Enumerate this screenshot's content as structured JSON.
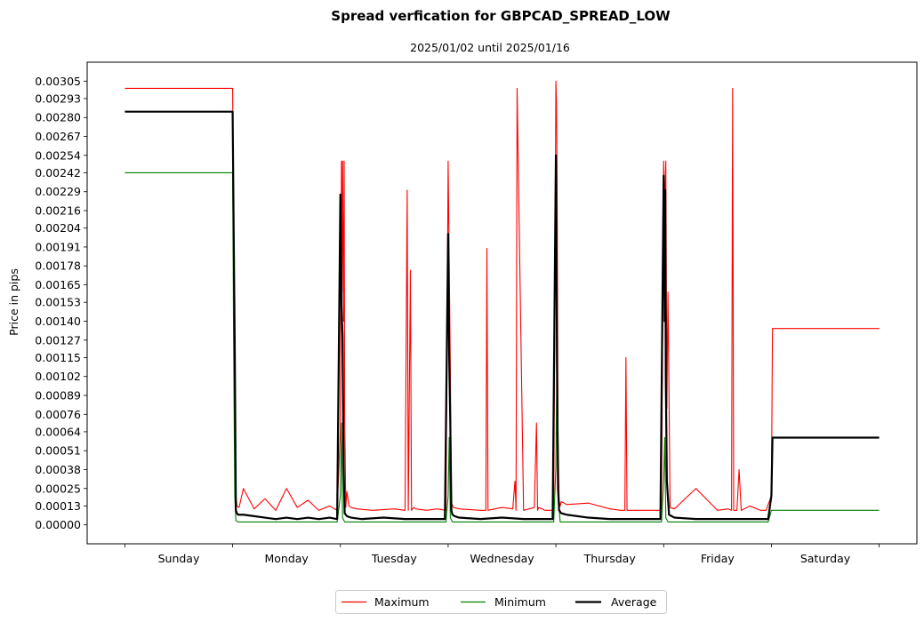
{
  "chart_data": {
    "type": "line",
    "title": "Spread verfication for GBPCAD_SPREAD_LOW",
    "subtitle": "2025/01/02 until 2025/01/16",
    "xlabel": "",
    "ylabel": "Price in pips",
    "categories": [
      "Sunday",
      "Monday",
      "Tuesday",
      "Wednesday",
      "Thursday",
      "Friday",
      "Saturday"
    ],
    "xlim": [
      -0.35,
      7.35
    ],
    "ylim": [
      -0.00013,
      0.00318
    ],
    "y_ticks": [
      "0.00000",
      "0.00013",
      "0.00025",
      "0.00038",
      "0.00051",
      "0.00064",
      "0.00076",
      "0.00089",
      "0.00102",
      "0.00115",
      "0.00127",
      "0.00140",
      "0.00153",
      "0.00165",
      "0.00178",
      "0.00191",
      "0.00204",
      "0.00216",
      "0.00229",
      "0.00242",
      "0.00254",
      "0.00267",
      "0.00280",
      "0.00293",
      "0.00305"
    ],
    "grid": false,
    "legend": "bottom-center",
    "series": [
      {
        "name": "Maximum",
        "color": "#ff0000",
        "x": [
          0.0,
          1.0,
          1.01,
          1.02,
          1.03,
          1.04,
          1.06,
          1.1,
          1.2,
          1.3,
          1.4,
          1.5,
          1.6,
          1.7,
          1.8,
          1.9,
          1.97,
          2.0,
          2.01,
          2.015,
          2.02,
          2.03,
          2.035,
          2.04,
          2.05,
          2.06,
          2.08,
          2.1,
          2.15,
          2.3,
          2.5,
          2.6,
          2.62,
          2.63,
          2.65,
          2.66,
          2.68,
          2.7,
          2.8,
          2.9,
          2.98,
          3.0,
          3.01,
          3.02,
          3.03,
          3.05,
          3.1,
          3.3,
          3.35,
          3.36,
          3.37,
          3.5,
          3.6,
          3.62,
          3.63,
          3.64,
          3.7,
          3.8,
          3.82,
          3.83,
          3.84,
          3.9,
          3.98,
          4.0,
          4.005,
          4.01,
          4.02,
          4.03,
          4.04,
          4.05,
          4.1,
          4.3,
          4.5,
          4.6,
          4.64,
          4.65,
          4.66,
          4.7,
          4.9,
          4.98,
          5.0,
          5.01,
          5.02,
          5.03,
          5.04,
          5.06,
          5.1,
          5.3,
          5.5,
          5.6,
          5.63,
          5.64,
          5.65,
          5.68,
          5.7,
          5.72,
          5.8,
          5.9,
          5.95,
          6.0,
          6.01,
          7.0
        ],
        "values": [
          0.003,
          0.003,
          0.0019,
          0.00125,
          0.0002,
          0.00013,
          0.00012,
          0.00025,
          0.00011,
          0.00018,
          0.0001,
          0.00025,
          0.00012,
          0.00017,
          0.0001,
          0.00013,
          0.0001,
          0.00065,
          0.0025,
          0.0016,
          0.0025,
          0.0014,
          0.0025,
          0.00075,
          0.00012,
          0.00023,
          0.00013,
          0.00012,
          0.00011,
          0.0001,
          0.00011,
          0.0001,
          0.0023,
          0.0001,
          0.00175,
          0.0001,
          0.00012,
          0.00011,
          0.0001,
          0.00011,
          0.0001,
          0.0025,
          0.0018,
          0.0011,
          0.00015,
          0.00012,
          0.00011,
          0.0001,
          0.0001,
          0.0019,
          0.0001,
          0.00012,
          0.00011,
          0.0003,
          0.0001,
          0.003,
          0.0001,
          0.00012,
          0.0007,
          0.0001,
          0.00012,
          0.0001,
          0.0001,
          0.00305,
          0.0029,
          0.0025,
          0.0006,
          0.00017,
          0.00013,
          0.00016,
          0.00014,
          0.00015,
          0.00011,
          0.0001,
          0.0001,
          0.00115,
          0.0001,
          0.0001,
          0.0001,
          0.0001,
          0.0025,
          0.0022,
          0.0025,
          0.0008,
          0.0016,
          0.00012,
          0.00011,
          0.00025,
          0.0001,
          0.00011,
          0.0001,
          0.003,
          0.0001,
          0.0001,
          0.00038,
          0.0001,
          0.00013,
          0.0001,
          0.0001,
          0.0002,
          0.00135,
          0.00135
        ]
      },
      {
        "name": "Minimum",
        "color": "#008000",
        "x": [
          0.0,
          1.0,
          1.01,
          1.02,
          1.03,
          1.05,
          1.2,
          1.5,
          1.8,
          1.97,
          2.0,
          2.01,
          2.02,
          2.04,
          2.06,
          2.1,
          2.5,
          2.98,
          3.0,
          3.01,
          3.02,
          3.04,
          3.06,
          3.1,
          3.5,
          3.98,
          4.0,
          4.01,
          4.02,
          4.04,
          4.06,
          4.1,
          4.5,
          4.98,
          5.0,
          5.01,
          5.02,
          5.04,
          5.06,
          5.1,
          5.5,
          5.97,
          6.0,
          6.01,
          7.0
        ],
        "values": [
          0.00242,
          0.00242,
          0.00115,
          0.0002,
          3e-05,
          2e-05,
          2e-05,
          2e-05,
          2e-05,
          2e-05,
          0.0002,
          0.0007,
          5e-05,
          2e-05,
          2e-05,
          2e-05,
          2e-05,
          2e-05,
          0.0002,
          0.0006,
          5e-05,
          2e-05,
          2e-05,
          2e-05,
          2e-05,
          2e-05,
          0.0004,
          0.0012,
          0.0002,
          2e-05,
          2e-05,
          2e-05,
          2e-05,
          2e-05,
          0.0003,
          0.0006,
          5e-05,
          2e-05,
          2e-05,
          2e-05,
          2e-05,
          2e-05,
          0.0001,
          0.0001,
          0.0001
        ]
      },
      {
        "name": "Average",
        "color": "#000000",
        "x": [
          0.0,
          1.0,
          1.01,
          1.02,
          1.03,
          1.04,
          1.05,
          1.1,
          1.2,
          1.3,
          1.4,
          1.5,
          1.6,
          1.7,
          1.8,
          1.9,
          1.97,
          2.0,
          2.01,
          2.02,
          2.03,
          2.04,
          2.06,
          2.1,
          2.2,
          2.4,
          2.6,
          2.8,
          2.97,
          3.0,
          3.01,
          3.02,
          3.03,
          3.04,
          3.06,
          3.1,
          3.3,
          3.5,
          3.7,
          3.97,
          4.0,
          4.005,
          4.01,
          4.02,
          4.03,
          4.05,
          4.1,
          4.3,
          4.5,
          4.7,
          4.97,
          5.0,
          5.01,
          5.015,
          5.02,
          5.03,
          5.05,
          5.1,
          5.3,
          5.5,
          5.7,
          5.97,
          6.0,
          6.01,
          7.0
        ],
        "values": [
          0.00284,
          0.00284,
          0.002,
          0.0012,
          0.0001,
          8e-05,
          7e-05,
          7e-05,
          6e-05,
          5e-05,
          4e-05,
          5e-05,
          4e-05,
          5e-05,
          4e-05,
          5e-05,
          4e-05,
          0.00227,
          0.0015,
          0.0013,
          0.0004,
          8e-05,
          6e-05,
          5e-05,
          4e-05,
          5e-05,
          4e-05,
          4e-05,
          4e-05,
          0.002,
          0.00115,
          0.0007,
          0.0001,
          7e-05,
          6e-05,
          5e-05,
          4e-05,
          5e-05,
          4e-05,
          4e-05,
          0.00254,
          0.002,
          0.0011,
          0.00025,
          0.0001,
          8e-05,
          7e-05,
          5e-05,
          4e-05,
          4e-05,
          4e-05,
          0.0024,
          0.0014,
          0.0023,
          0.001,
          0.0003,
          7e-05,
          5e-05,
          4e-05,
          4e-05,
          4e-05,
          4e-05,
          0.0002,
          0.0006,
          0.0006
        ]
      }
    ]
  }
}
